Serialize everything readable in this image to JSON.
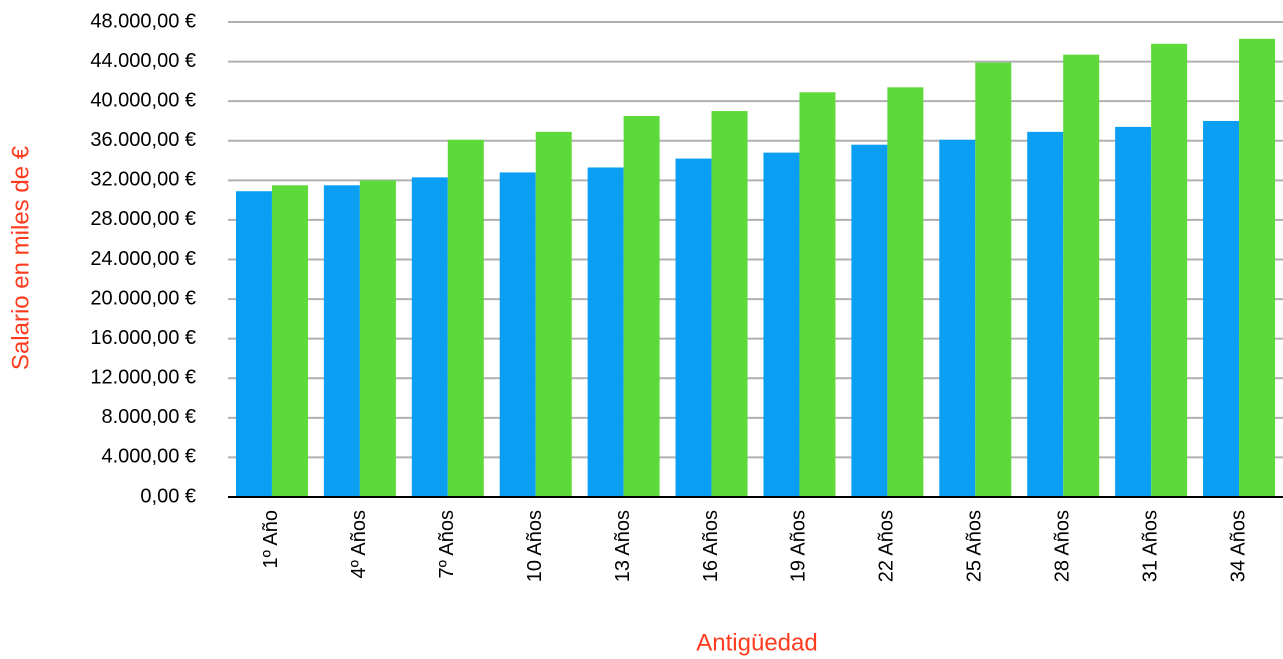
{
  "chart_data": {
    "type": "bar",
    "x_label": "Antigüedad",
    "y_label": "Salario en miles de €",
    "categories": [
      "1º Año",
      "4º Años",
      "7º Años",
      "10 Años",
      "13 Años",
      "16 Años",
      "19 Años",
      "22 Años",
      "25 Años",
      "28 Años",
      "31 Años",
      "34 Años"
    ],
    "series": [
      {
        "color": "#0a9ff2",
        "values": [
          30900,
          31500,
          32300,
          32800,
          33300,
          34200,
          34800,
          35600,
          36100,
          36900,
          37400,
          38000
        ]
      },
      {
        "color": "#5dd93a",
        "values": [
          31500,
          32000,
          36100,
          36900,
          38500,
          39000,
          40900,
          41400,
          43900,
          44700,
          45800,
          46300
        ]
      }
    ],
    "ylim": [
      0,
      48000
    ],
    "yticks": [
      {
        "value": 0,
        "label": "0,00 €"
      },
      {
        "value": 4000,
        "label": "4.000,00 €"
      },
      {
        "value": 8000,
        "label": "8.000,00 €"
      },
      {
        "value": 12000,
        "label": "12.000,00 €"
      },
      {
        "value": 16000,
        "label": "16.000,00 €"
      },
      {
        "value": 20000,
        "label": "20.000,00 €"
      },
      {
        "value": 24000,
        "label": "24.000,00 €"
      },
      {
        "value": 28000,
        "label": "28.000,00 €"
      },
      {
        "value": 32000,
        "label": "32.000,00 €"
      },
      {
        "value": 36000,
        "label": "36.000,00 €"
      },
      {
        "value": 40000,
        "label": "40.000,00 €"
      },
      {
        "value": 44000,
        "label": "44.000,00 €"
      },
      {
        "value": 48000,
        "label": "48.000,00 €"
      }
    ],
    "grid": true
  }
}
